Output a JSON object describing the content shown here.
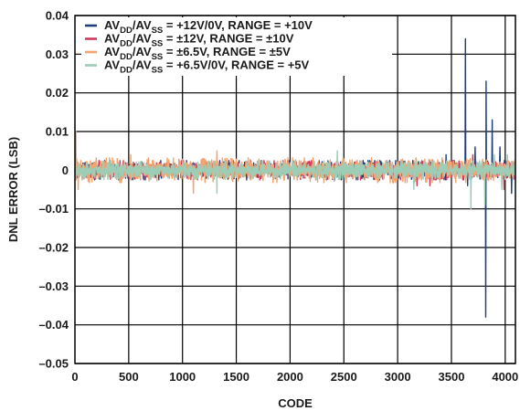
{
  "chart_data": {
    "type": "line",
    "xlabel": "CODE",
    "ylabel": "DNL ERROR (LSB)",
    "xlim": [
      0,
      4095
    ],
    "ylim": [
      -0.05,
      0.04
    ],
    "x_ticks": [
      0,
      500,
      1000,
      1500,
      2000,
      2500,
      3000,
      3500,
      4000
    ],
    "y_ticks": [
      -0.05,
      -0.04,
      -0.03,
      -0.02,
      -0.01,
      0,
      0.01,
      0.02,
      0.03,
      0.04
    ],
    "y_tick_labels": [
      "–0.05",
      "–0.04",
      "–0.03",
      "–0.02",
      "–0.01",
      "0",
      "0.01",
      "0.02",
      "0.03",
      "0.04"
    ],
    "x_tick_labels": [
      "0",
      "500",
      "1000",
      "1500",
      "2000",
      "2500",
      "3000",
      "3500",
      "4000"
    ],
    "grid": true,
    "legend_placement": "top-left",
    "series": [
      {
        "name": "AVDD/AVSS = +12V/0V, RANGE = +10V",
        "legend_parts": {
          "a": "AV",
          "a_sub": "DD",
          "b": "/AV",
          "b_sub": "SS",
          "c": " = +12V/0V, RANGE = +10V"
        },
        "color": "#1f3d7a",
        "noise_amplitude": 0.0025,
        "spikes": [
          [
            3450,
            0.004
          ],
          [
            3630,
            0.034
          ],
          [
            3650,
            -0.004
          ],
          [
            3720,
            0.006
          ],
          [
            3820,
            -0.038
          ],
          [
            3822,
            0.023
          ],
          [
            3880,
            0.013
          ],
          [
            3950,
            0.006
          ],
          [
            4060,
            -0.006
          ]
        ]
      },
      {
        "name": "AVDD/AVSS = ±12V, RANGE = ±10V",
        "legend_parts": {
          "a": "AV",
          "a_sub": "DD",
          "b": "/AV",
          "b_sub": "SS",
          "c": " = ±12V, RANGE = ±10V"
        },
        "color": "#d0395a",
        "noise_amplitude": 0.0025,
        "spikes": [
          [
            3180,
            -0.004
          ],
          [
            3300,
            -0.004
          ],
          [
            3700,
            0.004
          ],
          [
            3990,
            -0.005
          ]
        ]
      },
      {
        "name": "AVDD/AVSS = ±6.5V, RANGE = ±5V",
        "legend_parts": {
          "a": "AV",
          "a_sub": "DD",
          "b": "/AV",
          "b_sub": "SS",
          "c": " = ±6.5V, RANGE = ±5V"
        },
        "color": "#f4a36e",
        "noise_amplitude": 0.0032,
        "spikes": [
          [
            10,
            0.01
          ],
          [
            30,
            -0.005
          ],
          [
            520,
            0.004
          ],
          [
            1100,
            -0.006
          ],
          [
            1320,
            0.005
          ]
        ]
      },
      {
        "name": "AVDD/AVSS = +6.5V/0V, RANGE = +5V",
        "legend_parts": {
          "a": "AV",
          "a_sub": "DD",
          "b": "/AV",
          "b_sub": "SS",
          "c": " = +6.5V/0V, RANGE = +5V"
        },
        "color": "#9dcdb6",
        "noise_amplitude": 0.0024,
        "spikes": [
          [
            1320,
            -0.006
          ],
          [
            2440,
            0.005
          ],
          [
            3150,
            -0.005
          ],
          [
            3680,
            -0.01
          ],
          [
            3810,
            -0.009
          ],
          [
            3900,
            0.004
          ],
          [
            3970,
            -0.005
          ],
          [
            4020,
            0.004
          ]
        ]
      }
    ]
  }
}
